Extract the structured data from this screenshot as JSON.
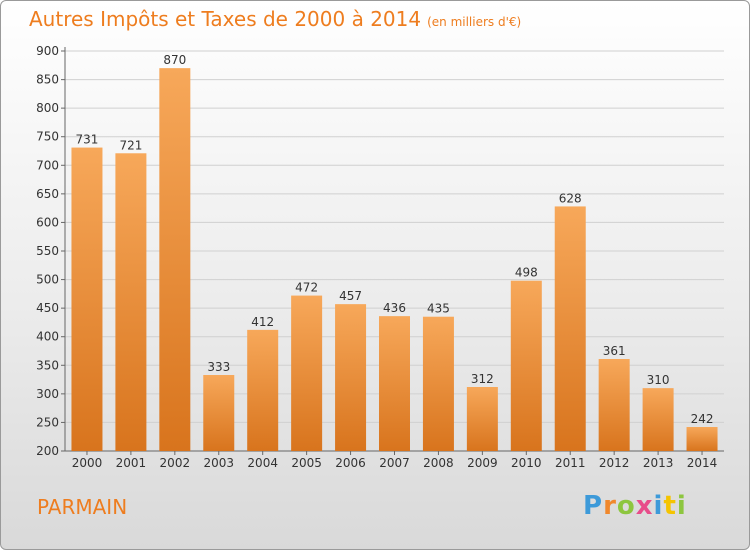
{
  "header": {
    "title": "Autres Impôts et Taxes de 2000 à 2014",
    "subtitle": "(en milliers d'€)"
  },
  "footer": {
    "place": "PARMAIN",
    "brand": [
      "P",
      "r",
      "o",
      "x",
      "i",
      "t",
      "i"
    ]
  },
  "colors": {
    "accent": "#ee7d1f",
    "bar_light": "#f7a85a",
    "bar_dark": "#d8741d",
    "brand": [
      "#3d9ad9",
      "#f0882c",
      "#8dc63f",
      "#e84d8a",
      "#3d9ad9",
      "#f5c400",
      "#8dc63f"
    ]
  },
  "chart_data": {
    "type": "bar",
    "categories": [
      "2000",
      "2001",
      "2002",
      "2003",
      "2004",
      "2005",
      "2006",
      "2007",
      "2008",
      "2009",
      "2010",
      "2011",
      "2012",
      "2013",
      "2014"
    ],
    "values": [
      731,
      721,
      870,
      333,
      412,
      472,
      457,
      436,
      435,
      312,
      498,
      628,
      361,
      310,
      242
    ],
    "ylim": [
      200,
      900
    ],
    "yticks": [
      200,
      250,
      300,
      350,
      400,
      450,
      500,
      550,
      600,
      650,
      700,
      750,
      800,
      850,
      900
    ],
    "grid": true
  }
}
